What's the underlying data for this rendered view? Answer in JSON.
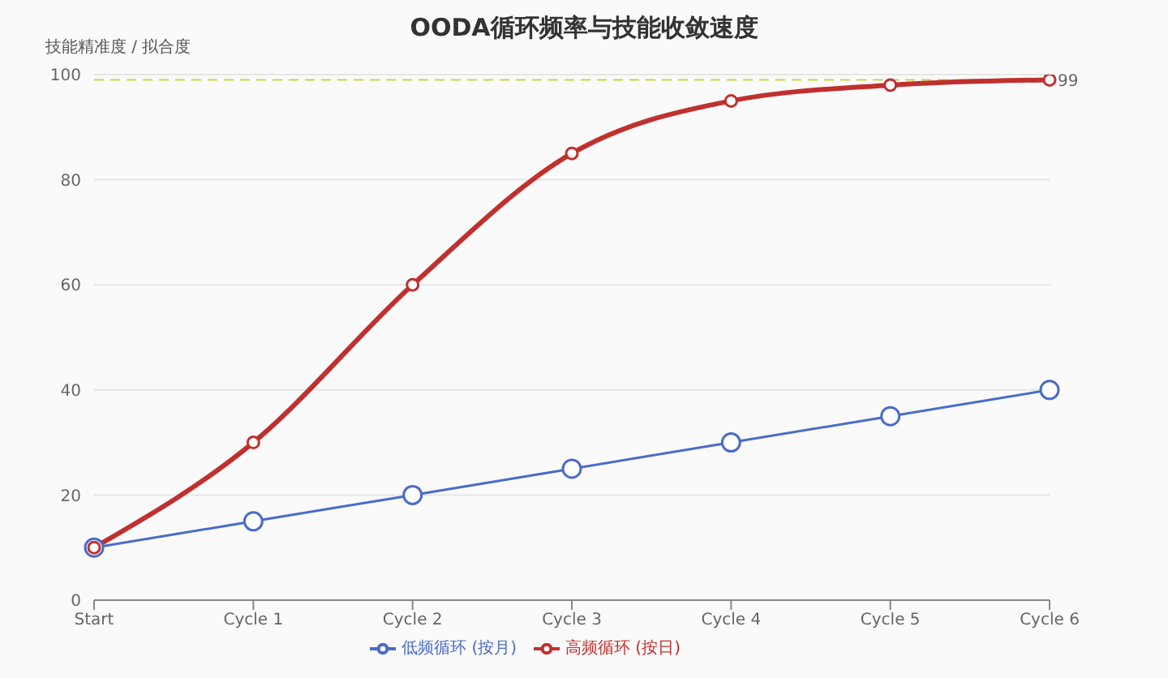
{
  "chart_data": {
    "type": "line",
    "title": "OODA循环频率与技能收敛速度",
    "ylabel": "技能精准度 / 拟合度",
    "categories": [
      "Start",
      "Cycle 1",
      "Cycle 2",
      "Cycle 3",
      "Cycle 4",
      "Cycle 5",
      "Cycle 6"
    ],
    "series": [
      {
        "name": "低频循环 (按月)",
        "color": "#4a6cc8",
        "values": [
          10,
          15,
          20,
          25,
          30,
          35,
          40
        ]
      },
      {
        "name": "高频循环 (按日)",
        "color": "#c0302e",
        "values": [
          10,
          30,
          60,
          85,
          95,
          98,
          99
        ]
      }
    ],
    "ylim": [
      0,
      100
    ],
    "yticks": [
      0,
      20,
      40,
      60,
      80,
      100
    ],
    "grid": "y",
    "legend": "bottom",
    "marker": "circle",
    "line_style": "solid",
    "ref_lines": [
      {
        "axis": "y",
        "value": 99,
        "label": "99",
        "color": "#c8d44a",
        "line_style": "dashed"
      }
    ]
  }
}
